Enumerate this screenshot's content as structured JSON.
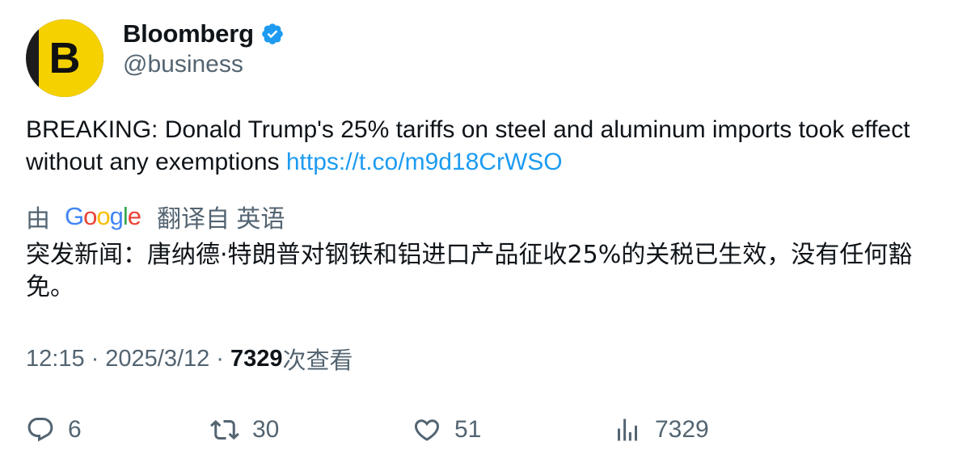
{
  "author": {
    "display_name": "Bloomberg",
    "handle": "@business",
    "avatar_letter": "B",
    "verified": true
  },
  "tweet": {
    "text": "BREAKING: Donald Trump's 25% tariffs on steel and aluminum imports took effect without any exemptions ",
    "link": "https://t.co/m9d18CrWSO"
  },
  "translation": {
    "prefix": "由",
    "provider_logo": "Google",
    "suffix": "翻译自 英语",
    "text": "突发新闻：唐纳德·特朗普对钢铁和铝进口产品征收25%的关税已生效，没有任何豁免。"
  },
  "meta": {
    "time": "12:15",
    "date": "2025/3/12",
    "views": "7329",
    "views_label": "次查看"
  },
  "actions": {
    "replies": "6",
    "reposts": "30",
    "likes": "51",
    "views": "7329"
  },
  "colors": {
    "link": "#1d9bf0",
    "verified": "#1d9bf0",
    "secondary_text": "#536471",
    "avatar_yellow": "#f5d100"
  }
}
